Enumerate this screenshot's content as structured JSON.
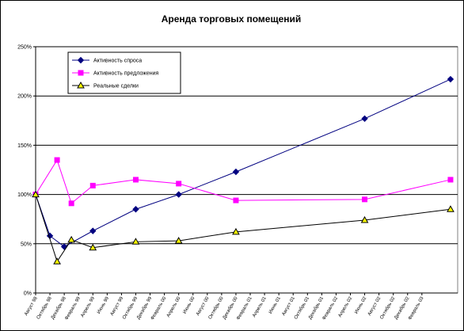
{
  "chart_data": {
    "type": "line",
    "title": "Аренда торговых помещений",
    "xlabel": "",
    "ylabel": "",
    "ylim": [
      0,
      250
    ],
    "yticks": [
      "0%",
      "50%",
      "100%",
      "150%",
      "200%",
      "250%"
    ],
    "grid": "horizontal",
    "legend_position": "top-left (inside plot)",
    "categories": [
      "Август 98",
      "Октябрь 98",
      "Декабрь 98",
      "Февраль 99",
      "Апрель 99",
      "Июнь 99",
      "Август 99",
      "Октябрь 99",
      "Декабрь 99",
      "Февраль 00",
      "Апрель 00",
      "Июнь 00",
      "Август 00",
      "Октябрь 00",
      "Декабрь 00",
      "Февраль 01",
      "Апрель 01",
      "Июнь 01",
      "Август 01",
      "Октябрь 01",
      "Декабрь 01",
      "Февраль 02",
      "Апрель 02",
      "Июнь 02",
      "Август 02",
      "Октябрь 02",
      "Декабрь 02",
      "Февраль 03"
    ],
    "series": [
      {
        "name": "Активность спроса",
        "color": "#000080",
        "marker": "diamond",
        "points": [
          [
            0,
            100
          ],
          [
            1,
            58
          ],
          [
            2,
            47
          ],
          [
            4,
            63
          ],
          [
            7,
            85
          ],
          [
            10,
            100
          ],
          [
            14,
            123
          ],
          [
            23,
            177
          ],
          [
            29,
            217
          ]
        ]
      },
      {
        "name": "Активность предложения",
        "color": "#ff00ff",
        "marker": "square",
        "points": [
          [
            0,
            100
          ],
          [
            1.5,
            135
          ],
          [
            2.5,
            91
          ],
          [
            4,
            109
          ],
          [
            7,
            115
          ],
          [
            10,
            111
          ],
          [
            14,
            94
          ],
          [
            23,
            95
          ],
          [
            29,
            115
          ]
        ]
      },
      {
        "name": "Реальные сделки",
        "color": "#000000",
        "marker": "triangle",
        "marker_fill": "#ffff00",
        "points": [
          [
            0,
            100
          ],
          [
            1.5,
            32
          ],
          [
            2.5,
            54
          ],
          [
            4,
            46
          ],
          [
            7,
            52
          ],
          [
            10,
            53
          ],
          [
            14,
            62
          ],
          [
            23,
            74
          ],
          [
            29,
            85
          ]
        ]
      }
    ]
  }
}
